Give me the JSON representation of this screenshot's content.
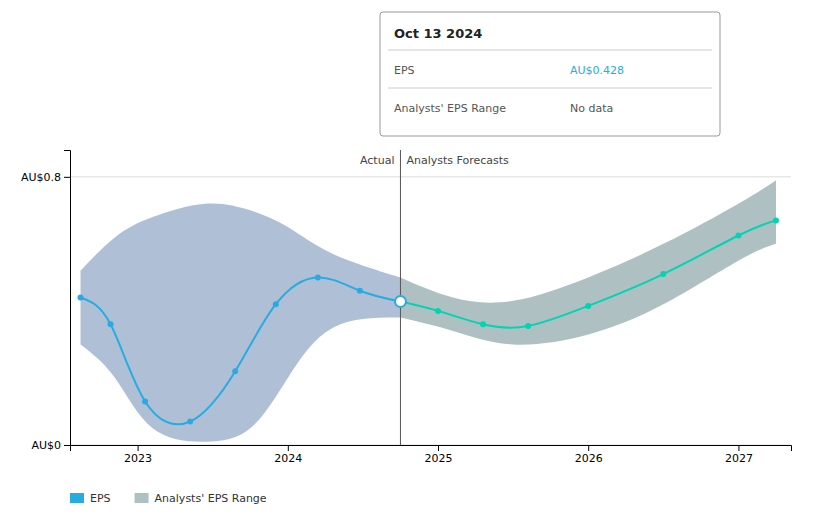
{
  "chart_data": {
    "type": "line",
    "xlim": [
      2022.55,
      2027.35
    ],
    "xticks": [
      2023,
      2024,
      2025,
      2026,
      2027
    ],
    "ylim": [
      0.0,
      0.88
    ],
    "yticks": [
      {
        "value": 0.0,
        "label": "AU$0"
      },
      {
        "value": 0.8,
        "label": "AU$0.8"
      }
    ],
    "grid": true,
    "legend": "lower left",
    "series": [
      {
        "name": "EPS",
        "type": "line",
        "color": "#29abe2",
        "marker": "circle",
        "x": [
          2022.62,
          2022.82,
          2023.05,
          2023.35,
          2023.65,
          2023.92,
          2024.2,
          2024.48,
          2024.75
        ],
        "values": [
          0.44,
          0.36,
          0.13,
          0.07,
          0.22,
          0.42,
          0.5,
          0.46,
          0.428
        ]
      },
      {
        "type": "line",
        "color": "#00d4b4",
        "marker": "circle",
        "x": [
          2024.75,
          2025.0,
          2025.3,
          2025.6,
          2026.0,
          2026.5,
          2027.0,
          2027.25
        ],
        "values": [
          0.428,
          0.4,
          0.36,
          0.355,
          0.415,
          0.51,
          0.625,
          0.67
        ]
      },
      {
        "type": "area",
        "color": "#1a4a8a",
        "x": [
          2022.62,
          2022.85,
          2023.1,
          2023.45,
          2023.75,
          2024.0,
          2024.3,
          2024.75
        ],
        "upper": [
          0.52,
          0.62,
          0.68,
          0.72,
          0.7,
          0.65,
          0.57,
          0.5
        ],
        "lower": [
          0.3,
          0.2,
          0.05,
          0.01,
          0.05,
          0.2,
          0.35,
          0.38
        ]
      },
      {
        "name": "Analysts' EPS Range",
        "type": "area",
        "color": "#1a4a50",
        "x": [
          2024.75,
          2025.1,
          2025.5,
          2026.0,
          2026.5,
          2027.0,
          2027.25
        ],
        "upper": [
          0.5,
          0.44,
          0.43,
          0.5,
          0.6,
          0.72,
          0.79
        ],
        "lower": [
          0.38,
          0.34,
          0.3,
          0.33,
          0.42,
          0.55,
          0.6
        ]
      }
    ],
    "vline": 2024.75,
    "annotations": [
      {
        "text": "Actual"
      },
      {
        "text": "Analysts Forecasts"
      }
    ],
    "tooltip": {
      "x": 2024.75,
      "title": "Oct 13 2024",
      "rows": [
        {
          "label": "EPS",
          "value": 0.428,
          "value_label": "AU$0.428"
        },
        {
          "label": "Analysts' EPS Range",
          "value_label": "No data"
        }
      ]
    }
  }
}
